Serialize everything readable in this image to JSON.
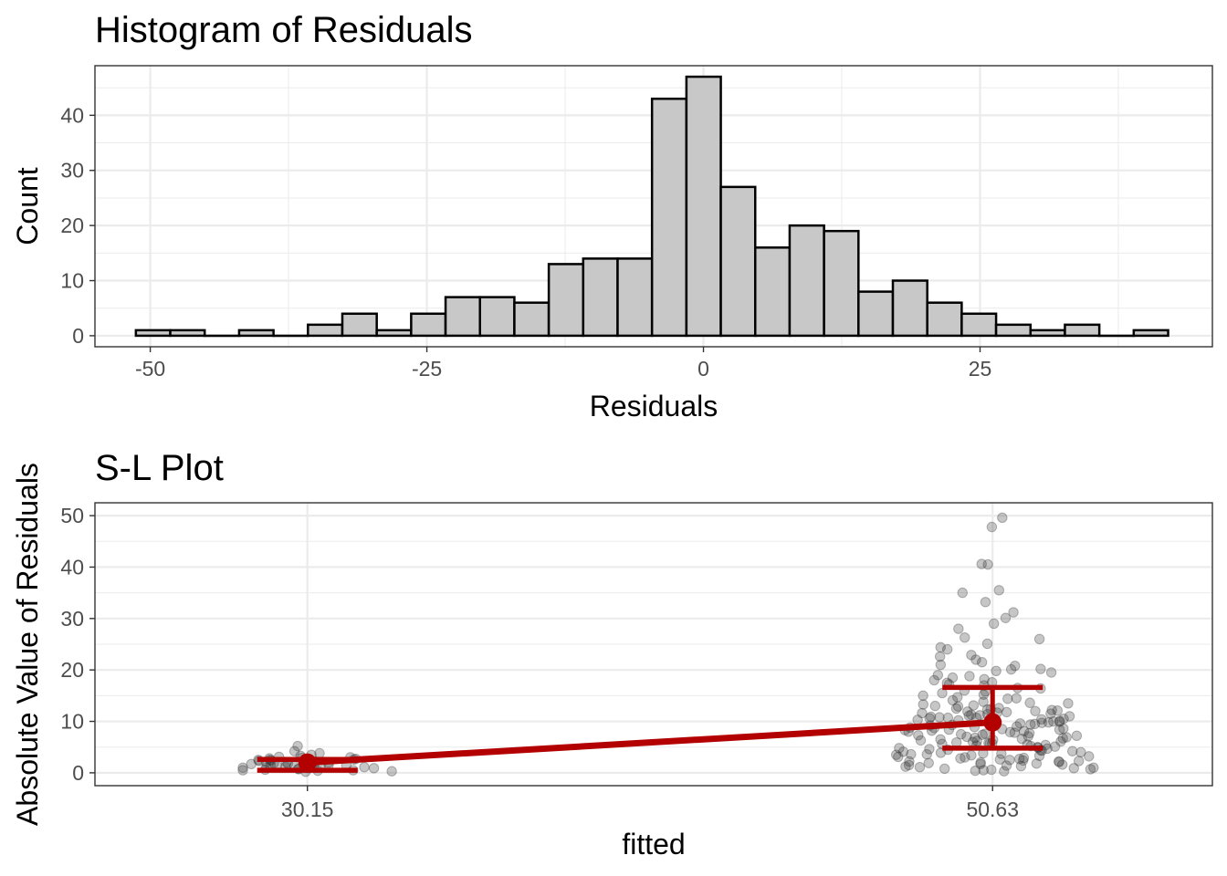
{
  "chart_data": [
    {
      "type": "bar",
      "title": "Histogram of Residuals",
      "xlabel": "Residuals",
      "ylabel": "Count",
      "xlim": [
        -55,
        46
      ],
      "ylim": [
        -2,
        49
      ],
      "xticks": [
        -50,
        -25,
        0,
        25
      ],
      "xtick_labels": [
        "-50",
        "-25",
        "0",
        "25"
      ],
      "yticks": [
        0,
        10,
        20,
        30,
        40
      ],
      "ytick_labels": [
        "0",
        "10",
        "20",
        "30",
        "40"
      ],
      "bin_width": 3.11,
      "bin_start": -51.3,
      "counts": [
        1,
        1,
        0,
        1,
        0,
        2,
        4,
        1,
        4,
        7,
        7,
        6,
        13,
        14,
        14,
        43,
        47,
        27,
        16,
        20,
        19,
        8,
        10,
        6,
        4,
        2,
        1,
        2,
        0,
        1
      ],
      "bar_fill": "#c8c8c8",
      "bar_stroke": "#000000",
      "grid": true
    },
    {
      "type": "scatter",
      "title": "S-L Plot",
      "xlabel": "fitted",
      "ylabel": "Absolute Value of Residuals",
      "xlim": [
        23.8,
        57.2
      ],
      "ylim": [
        -2.5,
        52.5
      ],
      "xticks": [
        30.15,
        50.63
      ],
      "xtick_labels": [
        "30.15",
        "50.63"
      ],
      "yticks": [
        0,
        10,
        20,
        30,
        40,
        50
      ],
      "ytick_labels": [
        "0",
        "10",
        "20",
        "30",
        "40",
        "50"
      ],
      "groups": [
        {
          "x": 30.15,
          "mean": 2.0,
          "lower": 0.5,
          "upper": 2.6
        },
        {
          "x": 50.63,
          "mean": 9.8,
          "lower": 4.8,
          "upper": 16.6
        }
      ],
      "points_group1": [
        0.2,
        0.4,
        0.5,
        0.6,
        0.8,
        0.9,
        1.0,
        1.1,
        1.2,
        1.3,
        1.4,
        1.5,
        1.6,
        1.7,
        1.8,
        1.9,
        2.0,
        2.1,
        2.2,
        2.3,
        2.4,
        2.5,
        2.6,
        2.7,
        2.8,
        2.9,
        3.0,
        3.1,
        3.3,
        3.5,
        3.8,
        4.2,
        5.2,
        0.3,
        0.7,
        1.0,
        1.5,
        2.0,
        2.5,
        0.5,
        1.2,
        1.8,
        2.3,
        0.9,
        1.4
      ],
      "points_group2": [
        49.6,
        47.8,
        40.6,
        35.5,
        33.2,
        31.2,
        30.1,
        28.0,
        26.3,
        25.1,
        24.0,
        22.6,
        21.5,
        20.8,
        20.1,
        19.5,
        18.8,
        18.2,
        17.6,
        17.0,
        16.4,
        15.8,
        15.2,
        14.7,
        14.1,
        13.6,
        13.0,
        12.5,
        12.0,
        11.5,
        11.0,
        10.5,
        10.0,
        9.5,
        9.0,
        8.5,
        8.0,
        7.5,
        7.0,
        6.5,
        6.0,
        5.5,
        5.0,
        4.5,
        4.0,
        3.5,
        3.0,
        2.5,
        2.0,
        1.5,
        1.0,
        0.5,
        12.2,
        11.8,
        11.4,
        10.9,
        10.4,
        9.9,
        9.3,
        8.8,
        8.2,
        7.7,
        7.1,
        6.6,
        6.1,
        5.6,
        5.1,
        4.6,
        4.1,
        3.6,
        3.1,
        2.6,
        2.1,
        1.6,
        1.1,
        0.6,
        13.3,
        12.9,
        12.4,
        11.6,
        11.1,
        10.7,
        10.2,
        9.7,
        9.2,
        8.7,
        8.3,
        7.8,
        7.3,
        6.8,
        6.3,
        5.8,
        5.3,
        4.8,
        4.3,
        3.8,
        3.3,
        2.8,
        2.3,
        1.8,
        1.3,
        0.8,
        22.0,
        21.0,
        20.2,
        19.0,
        18.0,
        17.2,
        16.0,
        15.0,
        14.4,
        13.8,
        13.1,
        12.6,
        12.1,
        11.7,
        11.2,
        10.6,
        10.1,
        9.6,
        9.1,
        8.6,
        8.1,
        7.6,
        7.2,
        6.7,
        6.2,
        5.7,
        5.2,
        4.7,
        4.2,
        3.7,
        3.2,
        2.7,
        2.2,
        1.7,
        1.2,
        0.7,
        0.3,
        2.4,
        3.4,
        4.4,
        5.4,
        6.4,
        7.4,
        8.4,
        9.4,
        10.3,
        11.3,
        12.3,
        13.5,
        14.5,
        15.5,
        16.5,
        17.5,
        18.5,
        19.8,
        22.9,
        24.4,
        26.0,
        29.0,
        35.0,
        40.5,
        1.9,
        2.9,
        3.9,
        4.9,
        5.9,
        6.9,
        7.9,
        8.9,
        9.8,
        10.8,
        11.9,
        0.4,
        0.9,
        1.4,
        2.2,
        3.6,
        5.7,
        8.4,
        10.7
      ],
      "point_color": "#333333",
      "line_color": "#b30000",
      "grid": true
    }
  ]
}
